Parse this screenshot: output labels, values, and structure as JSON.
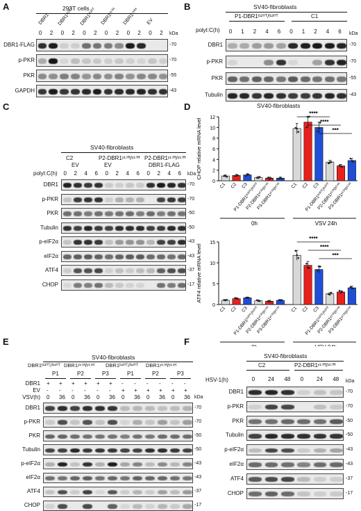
{
  "panels": {
    "A": {
      "label": "A",
      "header": "293T cells",
      "groups": [
        "DBR1",
        "DBR1ᴵ¹²⁰ᵀ",
        "DBR1ᴵ¹²⁰ᵀ",
        "DBR1ᵞ¹⁷ᴴ",
        "DBR1ᶜ¹³⁸",
        "EV"
      ],
      "times": [
        "0",
        "2",
        "0",
        "2",
        "0",
        "2",
        "0",
        "2",
        "0",
        "2",
        "0",
        "2"
      ],
      "rows": [
        "DBR1-FLAG",
        "p-PKR",
        "PKR",
        "GAPDH"
      ],
      "kda": [
        "-70",
        "-70",
        "-55",
        "-43"
      ]
    },
    "B": {
      "label": "B",
      "header": "SV40-fibroblasts",
      "groups": [
        "P1-DBR1ᴵ¹²⁰ᵀ/ᴵ¹²⁰ᵀ",
        "C1"
      ],
      "treatment": "polyI:C(h)",
      "times": [
        "0",
        "1",
        "2",
        "4",
        "6",
        "0",
        "1",
        "2",
        "4",
        "6"
      ],
      "rows": [
        "DBR1",
        "p-PKR",
        "PKR",
        "Tubulin"
      ],
      "kda": [
        "-70",
        "-70",
        "-55",
        "-43"
      ]
    },
    "C": {
      "label": "C",
      "header": "SV40-fibroblasts",
      "groups": [
        "C2",
        "P2-DBR1ʸ¹⁷ᴴ/ʸ¹⁷ᴴ",
        "P2-DBR1ʸ¹⁷ᴴ/ʸ¹⁷ᴴ"
      ],
      "subgroups": [
        "EV",
        "EV",
        "DBR1-FLAG"
      ],
      "treatment": "polyI:C(h)",
      "times": [
        "0",
        "2",
        "4",
        "6",
        "0",
        "2",
        "4",
        "6",
        "0",
        "2",
        "4",
        "6"
      ],
      "rows": [
        "DBR1",
        "p-PKR",
        "PKR",
        "Tubulin",
        "p-eIF2α",
        "eIF2α",
        "ATF4",
        "CHOP"
      ],
      "kda": [
        "-70",
        "-70",
        "-50",
        "-50",
        "-43",
        "-43",
        "-37",
        "-17"
      ]
    },
    "D": {
      "label": "D",
      "header": "SV40-fibroblasts",
      "ylabel1": "CHOP relative mRNA level",
      "ylabel2": "ATF4 relative mRNA level",
      "groups": [
        "0h",
        "VSV 24h"
      ],
      "categories": [
        "C1",
        "C2",
        "C3",
        "P1-DBR1ᴵ¹²⁰ᵀ/ᴵ¹²⁰ᵀ",
        "P2-DBR1ʸ¹⁷ᴴ/ʸ¹⁷ᴴ",
        "P3-DBR1ʸ¹⁷ᴴ/ʸ¹⁷ᴴ",
        "C1",
        "C2",
        "C3",
        "P1-DBR1ᴵ¹²⁰ᵀ/ᴵ¹²⁰ᵀ",
        "P2-DBR1ʸ¹⁷ᴴ/ʸ¹⁷ᴴ",
        "P3-DBR1ʸ¹⁷ᴴ/ʸ¹⁷ᴴ"
      ],
      "sig": [
        "****",
        "****",
        "***"
      ],
      "yticks1": [
        "0",
        "2",
        "4",
        "6",
        "8",
        "10",
        "12"
      ],
      "yticks2": [
        "0",
        "5",
        "10",
        "15"
      ]
    },
    "E": {
      "label": "E",
      "header": "SV40-fibroblasts",
      "genotypes": [
        "DBR1ᴵ¹²⁰ᵀ/ᴵ¹²⁰ᵀ",
        "DBR1ʸ¹⁷ᴴ/ʸ¹⁷ᴴ",
        "DBR1ᴵ¹²⁰ᵀ/ᴵ¹²⁰ᵀ",
        "DBR1ʸ¹⁷ᴴ/ʸ¹⁷ᴴ"
      ],
      "patients": [
        "P1",
        "P2",
        "P3",
        "P1",
        "P2",
        "P3"
      ],
      "cond_labels": [
        "DBR1",
        "EV",
        "VSV(h)"
      ],
      "dbr1_row": [
        "+",
        "+",
        "+",
        "+",
        "+",
        "+",
        "-",
        "-",
        "-",
        "-",
        "-",
        "-"
      ],
      "ev_row": [
        "-",
        "-",
        "-",
        "-",
        "-",
        "-",
        "+",
        "+",
        "+",
        "+",
        "+",
        "+"
      ],
      "times": [
        "0",
        "36",
        "0",
        "36",
        "0",
        "36",
        "0",
        "36",
        "0",
        "36",
        "0",
        "36"
      ],
      "rows": [
        "DBR1",
        "p-PKR",
        "PKR",
        "Tubulin",
        "p-eIF2α",
        "eIF2α",
        "ATF4",
        "CHOP"
      ],
      "kda": [
        "-70",
        "-70",
        "-50",
        "-50",
        "-43",
        "-43",
        "-37",
        "-17"
      ]
    },
    "F": {
      "label": "F",
      "header": "SV40-fibroblasts",
      "groups": [
        "C2",
        "P2-DBR1ʸ¹⁷ᴴ/ʸ¹⁷ᴴ"
      ],
      "treatment": "HSV-1(h)",
      "times": [
        "0",
        "24",
        "48",
        "0",
        "24",
        "48"
      ],
      "rows": [
        "DBR1",
        "p-PKR",
        "PKR",
        "Tubulin",
        "p-eIF2α",
        "eIF2α",
        "ATF4",
        "CHOP"
      ],
      "kda": [
        "-70",
        "-70",
        "-50",
        "-50",
        "-43",
        "-43",
        "-37",
        "-17"
      ]
    }
  },
  "kda_unit": "kDa",
  "chart_data": [
    {
      "type": "bar",
      "title": "SV40-fibroblasts",
      "ylabel": "CHOP relative mRNA level",
      "ylim": [
        0,
        12
      ],
      "categories": [
        "C1",
        "C2",
        "C3",
        "P1",
        "P2",
        "P3",
        "C1",
        "C2",
        "C3",
        "P1",
        "P2",
        "P3"
      ],
      "values": [
        0.9,
        1.0,
        1.1,
        0.6,
        0.5,
        0.5,
        9.8,
        11.0,
        10.0,
        3.5,
        2.8,
        3.8
      ],
      "colors": [
        "#d8d8d8",
        "#e8211d",
        "#1f4fd8",
        "#d8d8d8",
        "#e8211d",
        "#1f4fd8",
        "#d8d8d8",
        "#e8211d",
        "#1f4fd8",
        "#d8d8d8",
        "#e8211d",
        "#1f4fd8"
      ]
    },
    {
      "type": "bar",
      "ylabel": "ATF4 relative mRNA level",
      "ylim": [
        0,
        15
      ],
      "categories": [
        "C1",
        "C2",
        "C3",
        "P1",
        "P2",
        "P3",
        "C1",
        "C2",
        "C3",
        "P1",
        "P2",
        "P3"
      ],
      "values": [
        1.0,
        1.4,
        1.6,
        0.9,
        0.8,
        1.0,
        11.8,
        9.4,
        8.4,
        2.6,
        3.0,
        4.0
      ],
      "colors": [
        "#d8d8d8",
        "#e8211d",
        "#1f4fd8",
        "#d8d8d8",
        "#e8211d",
        "#1f4fd8",
        "#d8d8d8",
        "#e8211d",
        "#1f4fd8",
        "#d8d8d8",
        "#e8211d",
        "#1f4fd8"
      ]
    }
  ]
}
